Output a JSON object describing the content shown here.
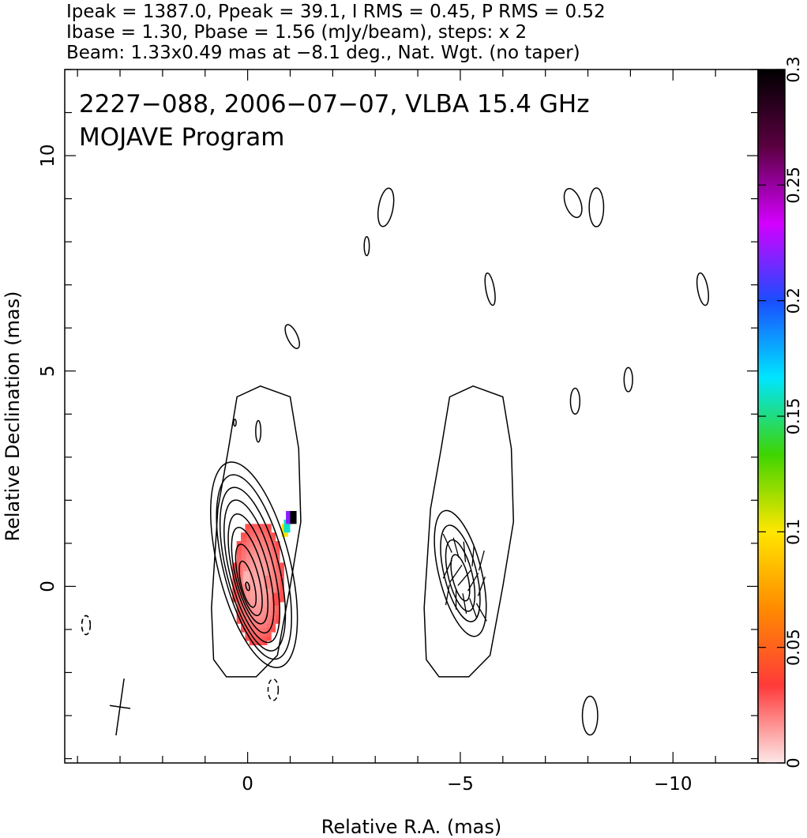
{
  "header": {
    "line1": "Ipeak = 1387.0, Ppeak = 39.1, I RMS = 0.45, P RMS = 0.52",
    "line2": "Ibase = 1.30, Pbase = 1.56 (mJy/beam), steps: x 2",
    "line3": "Beam: 1.33x0.49 mas at −8.1 deg., Nat. Wgt. (no taper)"
  },
  "chart_data": [
    {
      "type": "contour",
      "panel": "total-intensity",
      "title_line1": "2227−088, 2006−07−07, VLBA 15.4 GHz",
      "title_line2": "MOJAVE Program",
      "xlabel": "Relative R.A. (mas)",
      "ylabel": "Relative Declination (mas)",
      "xlim": [
        4.3,
        -12
      ],
      "ylim": [
        -4.1,
        12
      ],
      "xticks": [
        0,
        -5,
        -10
      ],
      "xtick_labels": [
        "0",
        "−5",
        "−10"
      ],
      "yticks": [
        0,
        5,
        10
      ],
      "ytick_labels": [
        "0",
        "5",
        "10"
      ],
      "beam": {
        "x": 3,
        "y": -2.8,
        "major": 1.33,
        "minor": 0.49,
        "pa": -8.1
      },
      "core_ellipses": [
        {
          "x": -0.15,
          "y": 0.5,
          "rx": 0.85,
          "ry": 2.45,
          "pa": -14
        },
        {
          "x": -0.15,
          "y": 0.45,
          "rx": 0.72,
          "ry": 2.2,
          "pa": -14
        },
        {
          "x": -0.12,
          "y": 0.4,
          "rx": 0.62,
          "ry": 1.95,
          "pa": -14
        },
        {
          "x": -0.1,
          "y": 0.35,
          "rx": 0.52,
          "ry": 1.7,
          "pa": -14
        },
        {
          "x": -0.08,
          "y": 0.3,
          "rx": 0.42,
          "ry": 1.42,
          "pa": -14
        },
        {
          "x": -0.05,
          "y": 0.25,
          "rx": 0.33,
          "ry": 1.15,
          "pa": -14
        },
        {
          "x": -0.03,
          "y": 0.15,
          "rx": 0.24,
          "ry": 0.85,
          "pa": -14
        },
        {
          "x": 0,
          "y": 0.05,
          "rx": 0.15,
          "ry": 0.55,
          "pa": -14
        },
        {
          "x": 0,
          "y": 0,
          "rx": 0.04,
          "ry": 0.1,
          "pa": -14
        }
      ],
      "noise_islands": [
        {
          "x": -3.25,
          "y": 8.8,
          "rx": 0.17,
          "ry": 0.45,
          "pa": 10
        },
        {
          "x": -2.8,
          "y": 7.9,
          "rx": 0.06,
          "ry": 0.22,
          "pa": 0
        },
        {
          "x": -1.05,
          "y": 5.8,
          "rx": 0.12,
          "ry": 0.3,
          "pa": -25
        },
        {
          "x": -7.65,
          "y": 8.9,
          "rx": 0.18,
          "ry": 0.35,
          "pa": -20
        },
        {
          "x": -8.2,
          "y": 8.8,
          "rx": 0.17,
          "ry": 0.45,
          "pa": 0
        },
        {
          "x": -5.7,
          "y": 6.9,
          "rx": 0.1,
          "ry": 0.38,
          "pa": -10
        },
        {
          "x": -10.7,
          "y": 6.9,
          "rx": 0.12,
          "ry": 0.38,
          "pa": -10
        },
        {
          "x": -7.7,
          "y": 4.3,
          "rx": 0.11,
          "ry": 0.3,
          "pa": 0
        },
        {
          "x": -8.95,
          "y": 4.8,
          "rx": 0.1,
          "ry": 0.28,
          "pa": 0
        },
        {
          "x": -8.05,
          "y": -3.0,
          "rx": 0.18,
          "ry": 0.45,
          "pa": 0
        }
      ],
      "negative_islands": [
        {
          "x": -0.6,
          "y": -2.4,
          "rx": 0.12,
          "ry": 0.25
        },
        {
          "x": 3.8,
          "y": -0.9,
          "rx": 0.1,
          "ry": 0.22
        }
      ],
      "polarization_pixels": [
        {
          "x": 0.1,
          "y": 0.2,
          "frac": 0.01
        },
        {
          "x": -0.4,
          "y": 0.1,
          "frac": 0.02
        },
        {
          "x": -0.6,
          "y": -0.3,
          "frac": 0.03
        },
        {
          "x": -0.8,
          "y": 1.3,
          "frac": 0.1
        },
        {
          "x": -0.85,
          "y": 1.4,
          "frac": 0.16
        },
        {
          "x": -0.9,
          "y": 1.6,
          "frac": 0.22
        },
        {
          "x": -1.0,
          "y": 1.6,
          "frac": 0.3
        }
      ]
    },
    {
      "type": "contour",
      "panel": "polarized-intensity-with-evpa",
      "offset_ra": -5,
      "colorbar": {
        "min": 0,
        "max": 0.3,
        "ticks": [
          0,
          0.05,
          0.1,
          0.15,
          0.2,
          0.25,
          0.3
        ],
        "tick_labels": [
          "0",
          "0.05",
          "0.1",
          "0.15",
          "0.2",
          "0.25",
          "0.3"
        ],
        "colors": [
          "#fde8e8",
          "#ff3a3a",
          "#ff8a00",
          "#ffe600",
          "#3fd400",
          "#00e5ff",
          "#1a4dff",
          "#d400ff",
          "#5a0040",
          "#000000"
        ]
      },
      "evpa_ticks_deg": [
        -30,
        -20,
        -10,
        0,
        10,
        20,
        30,
        40,
        35,
        25,
        15,
        5,
        -5,
        -15,
        -25
      ]
    }
  ]
}
